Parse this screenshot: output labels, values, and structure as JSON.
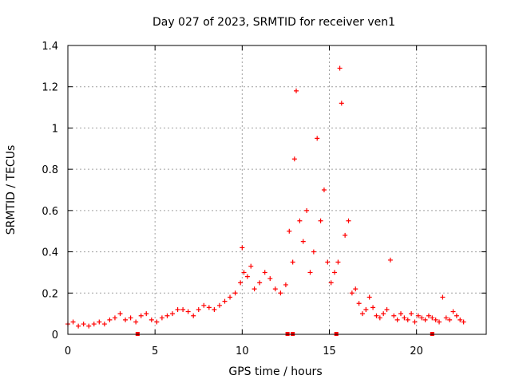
{
  "chart_data": {
    "type": "scatter",
    "title": "Day 027 of 2023, SRMTID for receiver ven1",
    "xlabel": "GPS time / hours",
    "ylabel": "SRMTID / TECUs",
    "xlim": [
      0,
      24
    ],
    "ylim": [
      0,
      1.4
    ],
    "x_ticks": [
      0,
      5,
      10,
      15,
      20
    ],
    "x_tick_labels": [
      "0",
      "5",
      "10",
      "15",
      "20"
    ],
    "y_ticks": [
      0,
      0.2,
      0.4,
      0.6,
      0.8,
      1.0,
      1.2,
      1.4
    ],
    "y_tick_labels": [
      "0",
      "0.2",
      "0.4",
      "0.6",
      "0.8",
      "1",
      "1.2",
      "1.4"
    ],
    "grid": true,
    "marker": "+",
    "series": [
      {
        "name": "ven1",
        "color": "#ff0000",
        "x": [
          0.0,
          0.3,
          0.6,
          0.9,
          1.2,
          1.5,
          1.8,
          2.1,
          2.4,
          2.7,
          3.0,
          3.3,
          3.6,
          3.9,
          4.2,
          4.5,
          4.8,
          5.1,
          5.4,
          5.7,
          6.0,
          6.3,
          6.6,
          6.9,
          7.2,
          7.5,
          7.8,
          8.1,
          8.4,
          8.7,
          9.0,
          9.3,
          9.6,
          9.9,
          10.0,
          10.1,
          10.3,
          10.5,
          10.7,
          11.0,
          11.3,
          11.6,
          11.9,
          12.2,
          12.5,
          12.7,
          12.9,
          13.0,
          13.1,
          13.3,
          13.5,
          13.7,
          13.9,
          14.1,
          14.3,
          14.5,
          14.7,
          14.9,
          15.1,
          15.3,
          15.5,
          15.6,
          15.7,
          15.9,
          16.1,
          16.3,
          16.5,
          16.7,
          16.9,
          17.1,
          17.3,
          17.5,
          17.7,
          17.9,
          18.1,
          18.3,
          18.5,
          18.7,
          18.9,
          19.1,
          19.3,
          19.5,
          19.7,
          19.9,
          20.1,
          20.3,
          20.5,
          20.7,
          20.9,
          21.1,
          21.3,
          21.5,
          21.7,
          21.9,
          22.1,
          22.3,
          22.5,
          22.7
        ],
        "y": [
          0.05,
          0.06,
          0.04,
          0.05,
          0.04,
          0.05,
          0.06,
          0.05,
          0.07,
          0.08,
          0.1,
          0.07,
          0.08,
          0.06,
          0.09,
          0.1,
          0.07,
          0.06,
          0.08,
          0.09,
          0.1,
          0.12,
          0.12,
          0.11,
          0.09,
          0.12,
          0.14,
          0.13,
          0.12,
          0.14,
          0.16,
          0.18,
          0.2,
          0.25,
          0.42,
          0.3,
          0.28,
          0.33,
          0.22,
          0.25,
          0.3,
          0.27,
          0.22,
          0.2,
          0.24,
          0.5,
          0.35,
          0.85,
          1.18,
          0.55,
          0.45,
          0.6,
          0.3,
          0.4,
          0.95,
          0.55,
          0.7,
          0.35,
          0.25,
          0.3,
          0.35,
          1.29,
          1.12,
          0.48,
          0.55,
          0.2,
          0.22,
          0.15,
          0.1,
          0.12,
          0.18,
          0.13,
          0.09,
          0.08,
          0.1,
          0.12,
          0.36,
          0.09,
          0.07,
          0.1,
          0.08,
          0.07,
          0.1,
          0.06,
          0.09,
          0.08,
          0.07,
          0.09,
          0.08,
          0.07,
          0.06,
          0.18,
          0.08,
          0.07,
          0.11,
          0.09,
          0.07,
          0.06
        ]
      }
    ],
    "baseline_markers_x": [
      4.0,
      12.6,
      12.9,
      15.4,
      20.9
    ]
  }
}
